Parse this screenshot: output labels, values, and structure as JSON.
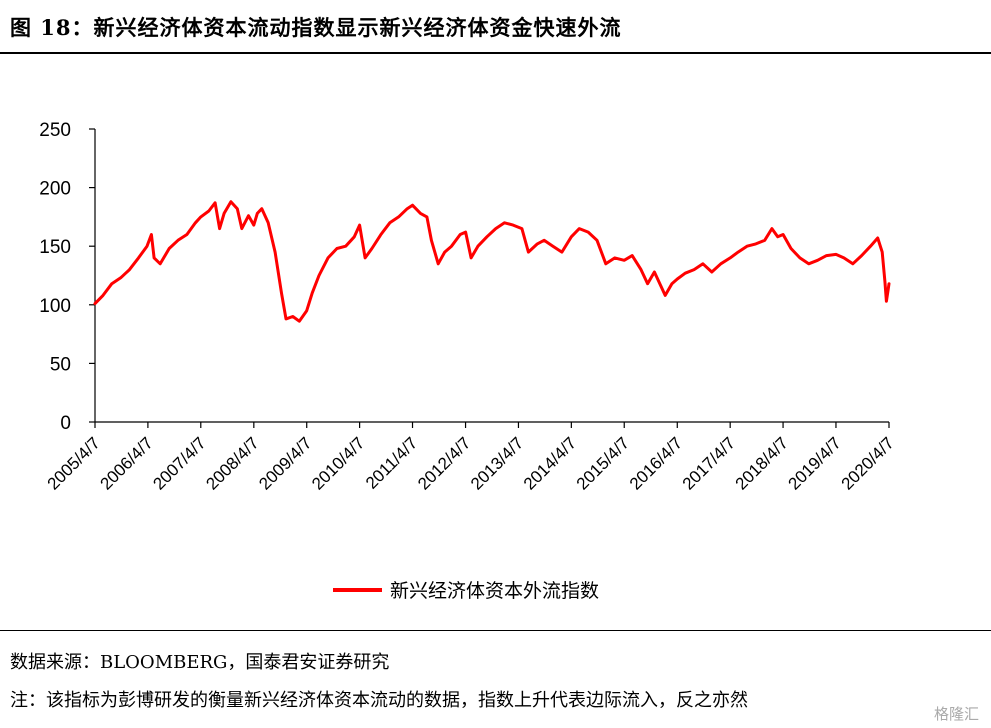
{
  "figure": {
    "title": "图 18：新兴经济体资本流动指数显示新兴经济体资金快速外流",
    "source": "数据来源：BLOOMBERG，国泰君安证券研究",
    "note": "注：该指标为彭博研发的衡量新兴经济体资本流动的数据，指数上升代表边际流入，反之亦然",
    "watermark": "格隆汇"
  },
  "chart_data": {
    "type": "line",
    "title": "",
    "xlabel": "",
    "ylabel": "",
    "ylim": [
      0,
      250
    ],
    "yticks": [
      "0",
      "50",
      "100",
      "150",
      "200",
      "250"
    ],
    "xticks": [
      "2005/4/7",
      "2006/4/7",
      "2007/4/7",
      "2008/4/7",
      "2009/4/7",
      "2010/4/7",
      "2011/4/7",
      "2012/4/7",
      "2013/4/7",
      "2014/4/7",
      "2015/4/7",
      "2016/4/7",
      "2017/4/7",
      "2018/4/7",
      "2019/4/7",
      "2020/4/7"
    ],
    "xlim": [
      "2005/4/7",
      "2020/4/7"
    ],
    "grid": false,
    "legend": "bottom-center",
    "series": [
      {
        "name": "新兴经济体资本外流指数",
        "color": "#ff0000",
        "points": [
          [
            "2005/4/7",
            101
          ],
          [
            "2005/6/1",
            108
          ],
          [
            "2005/8/1",
            118
          ],
          [
            "2005/10/1",
            123
          ],
          [
            "2005/12/1",
            130
          ],
          [
            "2006/2/1",
            140
          ],
          [
            "2006/4/1",
            150
          ],
          [
            "2006/5/1",
            160
          ],
          [
            "2006/5/20",
            140
          ],
          [
            "2006/7/1",
            135
          ],
          [
            "2006/9/1",
            148
          ],
          [
            "2006/11/1",
            155
          ],
          [
            "2007/1/1",
            160
          ],
          [
            "2007/3/1",
            170
          ],
          [
            "2007/4/7",
            175
          ],
          [
            "2007/6/1",
            180
          ],
          [
            "2007/7/15",
            187
          ],
          [
            "2007/8/15",
            165
          ],
          [
            "2007/9/15",
            178
          ],
          [
            "2007/11/1",
            188
          ],
          [
            "2007/12/15",
            182
          ],
          [
            "2008/1/15",
            165
          ],
          [
            "2008/3/1",
            176
          ],
          [
            "2008/4/7",
            168
          ],
          [
            "2008/5/1",
            178
          ],
          [
            "2008/6/1",
            182
          ],
          [
            "2008/7/15",
            170
          ],
          [
            "2008/9/1",
            145
          ],
          [
            "2008/10/15",
            110
          ],
          [
            "2008/11/15",
            88
          ],
          [
            "2009/1/1",
            90
          ],
          [
            "2009/2/15",
            86
          ],
          [
            "2009/4/7",
            95
          ],
          [
            "2009/5/15",
            110
          ],
          [
            "2009/7/1",
            125
          ],
          [
            "2009/9/1",
            140
          ],
          [
            "2009/11/1",
            148
          ],
          [
            "2010/1/1",
            150
          ],
          [
            "2010/3/1",
            158
          ],
          [
            "2010/4/7",
            168
          ],
          [
            "2010/5/15",
            140
          ],
          [
            "2010/7/1",
            148
          ],
          [
            "2010/9/1",
            160
          ],
          [
            "2010/11/1",
            170
          ],
          [
            "2011/1/1",
            175
          ],
          [
            "2011/3/1",
            182
          ],
          [
            "2011/4/7",
            185
          ],
          [
            "2011/6/1",
            178
          ],
          [
            "2011/7/15",
            175
          ],
          [
            "2011/8/15",
            155
          ],
          [
            "2011/10/1",
            135
          ],
          [
            "2011/11/15",
            145
          ],
          [
            "2012/1/1",
            150
          ],
          [
            "2012/3/1",
            160
          ],
          [
            "2012/4/7",
            162
          ],
          [
            "2012/5/15",
            140
          ],
          [
            "2012/7/1",
            150
          ],
          [
            "2012/9/1",
            158
          ],
          [
            "2012/11/1",
            165
          ],
          [
            "2013/1/1",
            170
          ],
          [
            "2013/3/1",
            168
          ],
          [
            "2013/5/1",
            165
          ],
          [
            "2013/6/15",
            145
          ],
          [
            "2013/8/15",
            152
          ],
          [
            "2013/10/1",
            155
          ],
          [
            "2013/12/1",
            150
          ],
          [
            "2014/2/1",
            145
          ],
          [
            "2014/4/7",
            158
          ],
          [
            "2014/6/1",
            165
          ],
          [
            "2014/8/1",
            162
          ],
          [
            "2014/10/1",
            155
          ],
          [
            "2014/12/1",
            135
          ],
          [
            "2015/2/1",
            140
          ],
          [
            "2015/4/7",
            138
          ],
          [
            "2015/6/1",
            142
          ],
          [
            "2015/8/1",
            130
          ],
          [
            "2015/9/15",
            118
          ],
          [
            "2015/11/1",
            128
          ],
          [
            "2016/1/15",
            108
          ],
          [
            "2016/3/1",
            118
          ],
          [
            "2016/4/7",
            122
          ],
          [
            "2016/6/1",
            127
          ],
          [
            "2016/8/1",
            130
          ],
          [
            "2016/10/1",
            135
          ],
          [
            "2016/12/1",
            128
          ],
          [
            "2017/2/1",
            135
          ],
          [
            "2017/4/7",
            140
          ],
          [
            "2017/6/1",
            145
          ],
          [
            "2017/8/1",
            150
          ],
          [
            "2017/10/1",
            152
          ],
          [
            "2017/12/1",
            155
          ],
          [
            "2018/1/20",
            165
          ],
          [
            "2018/3/1",
            158
          ],
          [
            "2018/4/7",
            160
          ],
          [
            "2018/6/1",
            148
          ],
          [
            "2018/8/1",
            140
          ],
          [
            "2018/10/1",
            135
          ],
          [
            "2018/12/1",
            138
          ],
          [
            "2019/2/1",
            142
          ],
          [
            "2019/4/7",
            143
          ],
          [
            "2019/6/1",
            140
          ],
          [
            "2019/8/1",
            135
          ],
          [
            "2019/10/1",
            142
          ],
          [
            "2019/12/1",
            150
          ],
          [
            "2020/1/20",
            157
          ],
          [
            "2020/2/20",
            145
          ],
          [
            "2020/3/10",
            120
          ],
          [
            "2020/3/20",
            103
          ],
          [
            "2020/3/31",
            112
          ],
          [
            "2020/4/7",
            118
          ]
        ]
      }
    ]
  }
}
